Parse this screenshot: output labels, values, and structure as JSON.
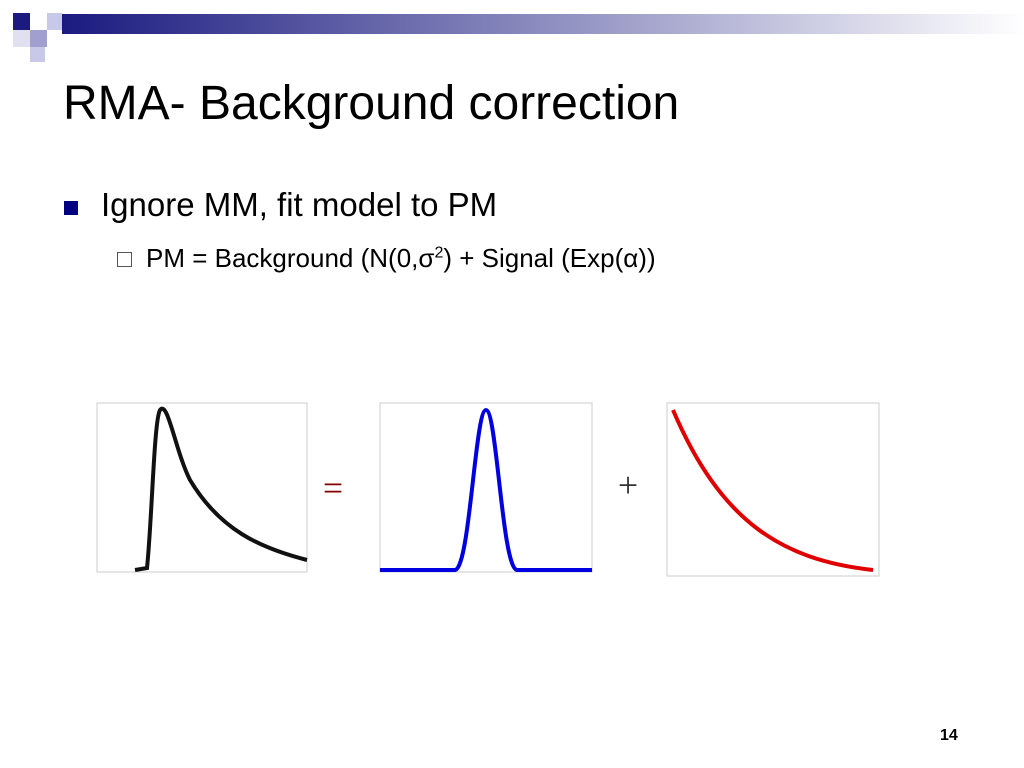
{
  "slide": {
    "title": "RMA- Background correction",
    "bullets": [
      {
        "text": "Ignore MM, fit model to PM",
        "sub": {
          "before": "PM = Background (N(0,σ",
          "sup": "2",
          "after": ") + Signal (Exp(α))"
        }
      }
    ],
    "equals": "=",
    "plus": "+",
    "page_number": "14"
  }
}
